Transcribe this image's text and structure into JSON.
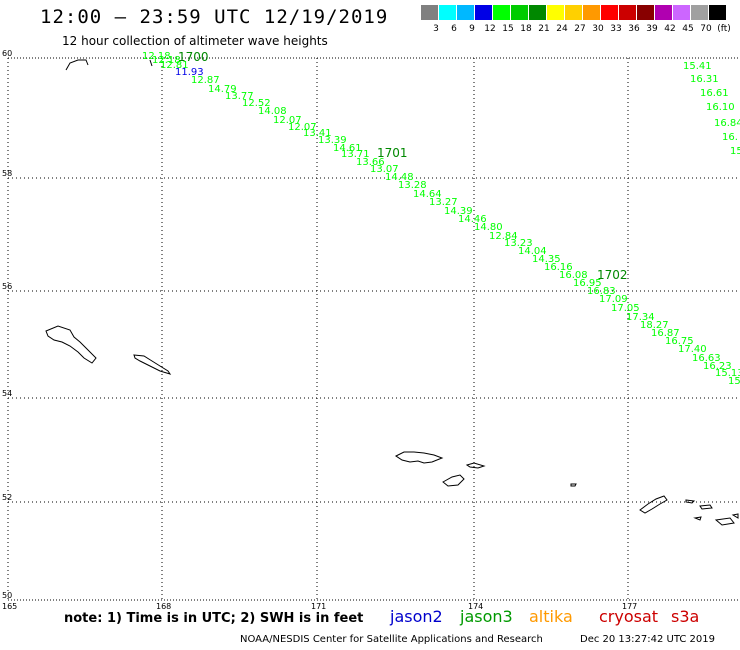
{
  "header": {
    "title": "12:00 – 23:59 UTC 12/19/2019",
    "subtitle": "12 hour collection of altimeter wave heights"
  },
  "legend_scale": {
    "colors": [
      "#808080",
      "#00ffff",
      "#00b8ff",
      "#0000e6",
      "#00ff00",
      "#00cc00",
      "#008800",
      "#ffff00",
      "#ffd000",
      "#ff9900",
      "#ff0000",
      "#cc0000",
      "#880000",
      "#b000b0",
      "#cc66ff",
      "#a0a0a0",
      "#000000"
    ],
    "labels": [
      "3",
      "6",
      "9",
      "12",
      "15",
      "18",
      "21",
      "24",
      "27",
      "30",
      "33",
      "36",
      "39",
      "42",
      "45",
      "70",
      "(ft)"
    ]
  },
  "axes": {
    "lat_labels": [
      "60",
      "58",
      "56",
      "54",
      "52",
      "50"
    ],
    "lon_labels": [
      "165",
      "168",
      "171",
      "174",
      "177"
    ]
  },
  "tracks": {
    "passes": [
      "1700",
      "1701",
      "1702"
    ],
    "values": [
      {
        "v": "12.18",
        "c": "#00ff00"
      },
      {
        "v": "12.18",
        "c": "#00ff00"
      },
      {
        "v": "12.81",
        "c": "#00ff00"
      },
      {
        "v": "11.93",
        "c": "#0000e6"
      },
      {
        "v": "12.87",
        "c": "#00ff00"
      },
      {
        "v": "14.79",
        "c": "#00ff00"
      },
      {
        "v": "13.77",
        "c": "#00ff00"
      },
      {
        "v": "12.52",
        "c": "#00ff00"
      },
      {
        "v": "14.08",
        "c": "#00ff00"
      },
      {
        "v": "12.07",
        "c": "#00ff00"
      },
      {
        "v": "12.07",
        "c": "#00ff00"
      },
      {
        "v": "13.41",
        "c": "#00ff00"
      },
      {
        "v": "13.39",
        "c": "#00ff00"
      },
      {
        "v": "14.61",
        "c": "#00ff00"
      },
      {
        "v": "13.71",
        "c": "#00ff00"
      },
      {
        "v": "13.66",
        "c": "#00ff00"
      },
      {
        "v": "13.07",
        "c": "#00ff00"
      },
      {
        "v": "14.48",
        "c": "#00ff00"
      },
      {
        "v": "13.28",
        "c": "#00ff00"
      },
      {
        "v": "14.64",
        "c": "#00ff00"
      },
      {
        "v": "13.27",
        "c": "#00ff00"
      },
      {
        "v": "14.39",
        "c": "#00ff00"
      },
      {
        "v": "14.46",
        "c": "#00ff00"
      },
      {
        "v": "14.80",
        "c": "#00ff00"
      },
      {
        "v": "12.84",
        "c": "#00ff00"
      },
      {
        "v": "13.23",
        "c": "#00ff00"
      },
      {
        "v": "14.04",
        "c": "#00ff00"
      },
      {
        "v": "14.35",
        "c": "#00ff00"
      },
      {
        "v": "16.16",
        "c": "#00ff00"
      },
      {
        "v": "16.08",
        "c": "#00ff00"
      },
      {
        "v": "16.95",
        "c": "#00ff00"
      },
      {
        "v": "16.83",
        "c": "#00ff00"
      },
      {
        "v": "17.09",
        "c": "#00ff00"
      },
      {
        "v": "17.05",
        "c": "#00ff00"
      },
      {
        "v": "17.34",
        "c": "#00ff00"
      },
      {
        "v": "18.27",
        "c": "#00ff00"
      },
      {
        "v": "16.87",
        "c": "#00ff00"
      },
      {
        "v": "16.75",
        "c": "#00ff00"
      },
      {
        "v": "17.40",
        "c": "#00ff00"
      },
      {
        "v": "16.63",
        "c": "#00ff00"
      },
      {
        "v": "16.23",
        "c": "#00ff00"
      },
      {
        "v": "15.13",
        "c": "#00ff00"
      },
      {
        "v": "15",
        "c": "#00ff00"
      },
      {
        "v": "15.41",
        "c": "#00ff00"
      },
      {
        "v": "16.31",
        "c": "#00ff00"
      },
      {
        "v": "16.61",
        "c": "#00ff00"
      },
      {
        "v": "16.10",
        "c": "#00ff00"
      },
      {
        "v": "16.84",
        "c": "#00ff00"
      },
      {
        "v": "16.",
        "c": "#00ff00"
      },
      {
        "v": "15",
        "c": "#00ff00"
      }
    ]
  },
  "footer": {
    "note": "note: 1) Time is in UTC; 2) SWH is in feet",
    "satellites": [
      {
        "name": "jason2",
        "color": "#0000cc"
      },
      {
        "name": "jason3",
        "color": "#009900"
      },
      {
        "name": "altika",
        "color": "#ff9900"
      },
      {
        "name": "cryosat",
        "color": "#cc0000"
      },
      {
        "name": "s3a",
        "color": "#cc0000"
      }
    ],
    "credit": "NOAA/NESDIS Center for Satellite Applications and Research",
    "timestamp": "Dec 20 13:27:42 UTC 2019"
  }
}
